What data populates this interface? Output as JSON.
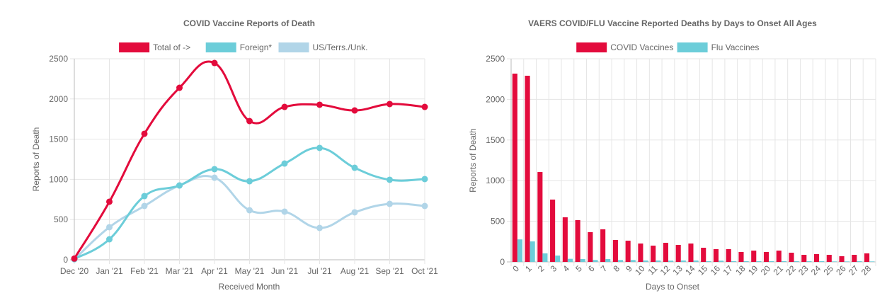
{
  "chart_data": [
    {
      "type": "line",
      "title": "COVID Vaccine Reports of Death",
      "xlabel": "Received Month",
      "ylabel": "Reports of Death",
      "ylim": [
        0,
        2500
      ],
      "yticks": [
        0,
        500,
        1000,
        1500,
        2000,
        2500
      ],
      "grid": true,
      "legend": "top",
      "categories": [
        "Dec '20",
        "Jan '21",
        "Feb '21",
        "Mar '21",
        "Apr '21",
        "May '21",
        "Jun '21",
        "Jul '21",
        "Aug '21",
        "Sep '21",
        "Oct '21"
      ],
      "series": [
        {
          "name": "Total of ->",
          "color": "#e30b3c",
          "values": [
            15,
            722,
            1567,
            2139,
            2447,
            1725,
            1901,
            1928,
            1857,
            1937,
            1901
          ]
        },
        {
          "name": "Foreign*",
          "color": "#6ccdd9",
          "values": [
            10,
            255,
            792,
            924,
            1127,
            977,
            1197,
            1391,
            1144,
            995,
            1004
          ]
        },
        {
          "name": "US/Terrs./Unk.",
          "color": "#b1d5e8",
          "values": [
            5,
            405,
            669,
            924,
            1021,
            616,
            599,
            396,
            590,
            695,
            669
          ]
        }
      ]
    },
    {
      "type": "bar",
      "title": "VAERS COVID/FLU Vaccine Reported Deaths by Days to Onset All Ages",
      "xlabel": "Days to Onset",
      "ylabel": "Reports of Death",
      "ylim": [
        0,
        2500
      ],
      "yticks": [
        0,
        500,
        1000,
        1500,
        2000,
        2500
      ],
      "grid": true,
      "legend": "top",
      "categories": [
        "0",
        "1",
        "2",
        "3",
        "4",
        "5",
        "6",
        "7",
        "8",
        "9",
        "10",
        "11",
        "12",
        "13",
        "14",
        "15",
        "16",
        "17",
        "18",
        "19",
        "20",
        "21",
        "22",
        "23",
        "24",
        "25",
        "26",
        "27",
        "28"
      ],
      "series": [
        {
          "name": "COVID Vaccines",
          "color": "#e30b3c",
          "values": [
            2317,
            2291,
            1106,
            767,
            549,
            514,
            366,
            401,
            270,
            261,
            226,
            200,
            235,
            209,
            226,
            174,
            157,
            157,
            122,
            139,
            122,
            139,
            113,
            87,
            96,
            87,
            70,
            87,
            105
          ]
        },
        {
          "name": "Flu Vaccines",
          "color": "#6ccdd9",
          "values": [
            277,
            252,
            105,
            78,
            38,
            35,
            23,
            35,
            23,
            23,
            17,
            17,
            15,
            17,
            17,
            9,
            15,
            9,
            9,
            9,
            9,
            9,
            9,
            9,
            9,
            6,
            6,
            9,
            6
          ]
        }
      ]
    }
  ]
}
